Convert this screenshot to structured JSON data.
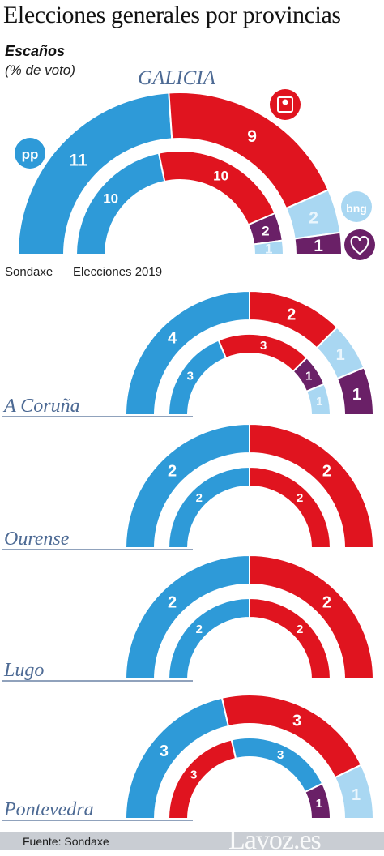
{
  "title": "Elecciones generales por provincias",
  "subtitle": "Escaños",
  "note": "(% de voto)",
  "source": "Fuente: Sondaxe",
  "brand": "Lavoz.es",
  "colors": {
    "PP": "#2e9ad8",
    "PSOE": "#e0141f",
    "BNG": "#a9d7f2",
    "Podemos": "#6a2067",
    "region_label": "#4d6a94"
  },
  "party_icons": {
    "PP": "pp-logo-icon",
    "PSOE": "psoe-rose-icon",
    "BNG": "bng-logo-icon",
    "Podemos": "podemos-heart-icon"
  },
  "chart_data": {
    "type": "parliament-arcs",
    "rings": [
      "Sondaxe",
      "Elecciones 2019"
    ],
    "regions": [
      {
        "name": "GALICIA",
        "outer_label": "Sondaxe",
        "inner_label": "Elecciones 2019",
        "outer": [
          {
            "party": "PP",
            "seats": 11
          },
          {
            "party": "PSOE",
            "seats": 9
          },
          {
            "party": "BNG",
            "seats": 2
          },
          {
            "party": "Podemos",
            "seats": 1
          }
        ],
        "inner": [
          {
            "party": "PP",
            "seats": 10
          },
          {
            "party": "PSOE",
            "seats": 10
          },
          {
            "party": "Podemos",
            "seats": 2
          },
          {
            "party": "BNG",
            "seats": 1
          }
        ]
      },
      {
        "name": "A Coruña",
        "outer": [
          {
            "party": "PP",
            "seats": 4
          },
          {
            "party": "PSOE",
            "seats": 2
          },
          {
            "party": "BNG",
            "seats": 1
          },
          {
            "party": "Podemos",
            "seats": 1
          }
        ],
        "inner": [
          {
            "party": "PP",
            "seats": 3
          },
          {
            "party": "PSOE",
            "seats": 3
          },
          {
            "party": "Podemos",
            "seats": 1
          },
          {
            "party": "BNG",
            "seats": 1
          }
        ]
      },
      {
        "name": "Ourense",
        "outer": [
          {
            "party": "PP",
            "seats": 2
          },
          {
            "party": "PSOE",
            "seats": 2
          }
        ],
        "inner": [
          {
            "party": "PP",
            "seats": 2
          },
          {
            "party": "PSOE",
            "seats": 2
          }
        ]
      },
      {
        "name": "Lugo",
        "outer": [
          {
            "party": "PP",
            "seats": 2
          },
          {
            "party": "PSOE",
            "seats": 2
          }
        ],
        "inner": [
          {
            "party": "PP",
            "seats": 2
          },
          {
            "party": "PSOE",
            "seats": 2
          }
        ]
      },
      {
        "name": "Pontevedra",
        "outer": [
          {
            "party": "PP",
            "seats": 3
          },
          {
            "party": "PSOE",
            "seats": 3
          },
          {
            "party": "BNG",
            "seats": 1
          }
        ],
        "inner": [
          {
            "party": "PSOE",
            "seats": 3
          },
          {
            "party": "PP",
            "seats": 3
          },
          {
            "party": "Podemos",
            "seats": 1
          }
        ]
      }
    ]
  }
}
